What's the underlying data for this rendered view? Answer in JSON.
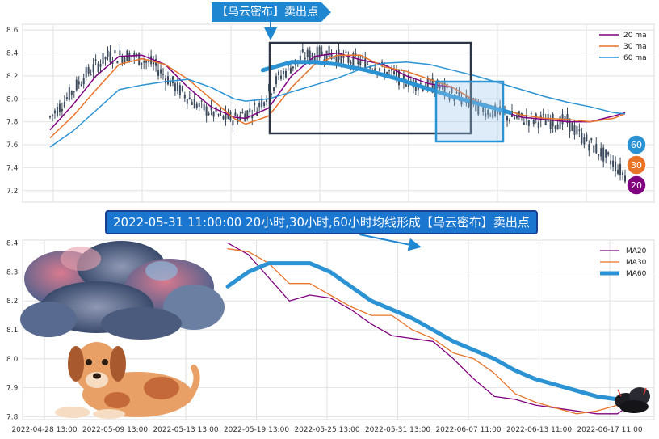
{
  "banners": {
    "top": "【乌云密布】卖出点",
    "middle": "2022-05-31 11:00:00 20小时,30小时,60小时均线形成【乌云密布】卖出点"
  },
  "colors": {
    "ma20": "#800080",
    "ma30": "#e8742a",
    "ma60": "#2b93d4",
    "candle": "#3a4a5c",
    "banner_bg": "#1f86d1"
  },
  "badges": {
    "ma60": "60",
    "ma30": "30",
    "ma20": "20"
  },
  "chart_data": [
    {
      "type": "line",
      "y_ticks": [
        "8.6",
        "8.4",
        "8.2",
        "8.0",
        "7.8",
        "7.6",
        "7.4",
        "7.2"
      ],
      "ylim": [
        7.1,
        8.65
      ],
      "grid": true,
      "legend_position": "top-right",
      "candle_x_range": [
        0,
        100
      ],
      "series": [
        {
          "name": "20 ma",
          "color": "#800080",
          "width": 1.5,
          "points": [
            [
              0,
              7.73
            ],
            [
              4,
              7.95
            ],
            [
              8,
              8.2
            ],
            [
              12,
              8.37
            ],
            [
              16,
              8.38
            ],
            [
              20,
              8.3
            ],
            [
              24,
              8.1
            ],
            [
              28,
              7.93
            ],
            [
              32,
              7.84
            ],
            [
              34,
              7.83
            ],
            [
              38,
              7.92
            ],
            [
              42,
              8.2
            ],
            [
              46,
              8.37
            ],
            [
              50,
              8.4
            ],
            [
              54,
              8.34
            ],
            [
              58,
              8.3
            ],
            [
              62,
              8.2
            ],
            [
              66,
              8.13
            ],
            [
              70,
              8.1
            ],
            [
              74,
              7.98
            ],
            [
              78,
              7.9
            ],
            [
              82,
              7.84
            ],
            [
              86,
              7.82
            ],
            [
              90,
              7.8
            ],
            [
              94,
              7.8
            ],
            [
              98,
              7.85
            ],
            [
              100,
              7.88
            ]
          ]
        },
        {
          "name": "30 ma",
          "color": "#e8742a",
          "width": 1.5,
          "points": [
            [
              0,
              7.66
            ],
            [
              4,
              7.85
            ],
            [
              8,
              8.08
            ],
            [
              12,
              8.3
            ],
            [
              16,
              8.35
            ],
            [
              20,
              8.3
            ],
            [
              24,
              8.17
            ],
            [
              28,
              8.0
            ],
            [
              32,
              7.83
            ],
            [
              34,
              7.78
            ],
            [
              38,
              7.85
            ],
            [
              42,
              8.1
            ],
            [
              46,
              8.3
            ],
            [
              50,
              8.38
            ],
            [
              54,
              8.38
            ],
            [
              58,
              8.28
            ],
            [
              62,
              8.24
            ],
            [
              66,
              8.17
            ],
            [
              70,
              8.1
            ],
            [
              74,
              7.98
            ],
            [
              78,
              7.92
            ],
            [
              82,
              7.86
            ],
            [
              86,
              7.83
            ],
            [
              90,
              7.82
            ],
            [
              94,
              7.8
            ],
            [
              98,
              7.83
            ],
            [
              100,
              7.87
            ]
          ]
        },
        {
          "name": "60 ma",
          "color": "#2b93d4",
          "width": 1.5,
          "points": [
            [
              0,
              7.58
            ],
            [
              4,
              7.72
            ],
            [
              8,
              7.9
            ],
            [
              12,
              8.08
            ],
            [
              16,
              8.12
            ],
            [
              20,
              8.15
            ],
            [
              24,
              8.17
            ],
            [
              28,
              8.1
            ],
            [
              32,
              8.0
            ],
            [
              34,
              7.98
            ],
            [
              38,
              8.0
            ],
            [
              42,
              8.06
            ],
            [
              46,
              8.12
            ],
            [
              50,
              8.18
            ],
            [
              54,
              8.26
            ],
            [
              58,
              8.31
            ],
            [
              62,
              8.32
            ],
            [
              66,
              8.3
            ],
            [
              70,
              8.25
            ],
            [
              74,
              8.2
            ],
            [
              78,
              8.14
            ],
            [
              82,
              8.08
            ],
            [
              86,
              8.02
            ],
            [
              90,
              7.97
            ],
            [
              94,
              7.93
            ],
            [
              98,
              7.88
            ],
            [
              100,
              7.87
            ]
          ]
        }
      ]
    },
    {
      "type": "line",
      "x_tick_labels": [
        "2022-04-28 13:00",
        "2022-05-09 13:00",
        "2022-05-13 13:00",
        "2022-05-19 13:00",
        "2022-05-25 13:00",
        "2022-05-31 13:00",
        "2022-06-07 11:00",
        "2022-06-13 11:00",
        "2022-06-17 11:00"
      ],
      "y_ticks": [
        "8.4",
        "8.3",
        "8.2",
        "8.1",
        "8.0",
        "7.9",
        "7.8"
      ],
      "ylim": [
        7.79,
        8.41
      ],
      "grid": true,
      "legend_position": "top-right",
      "series": [
        {
          "name": "MA20",
          "color": "#800080",
          "width": 1.3,
          "points": [
            [
              0,
              8.4
            ],
            [
              5,
              8.36
            ],
            [
              10,
              8.28
            ],
            [
              15,
              8.2
            ],
            [
              20,
              8.22
            ],
            [
              25,
              8.21
            ],
            [
              30,
              8.17
            ],
            [
              35,
              8.12
            ],
            [
              40,
              8.08
            ],
            [
              45,
              8.07
            ],
            [
              50,
              8.06
            ],
            [
              55,
              8.0
            ],
            [
              60,
              7.93
            ],
            [
              65,
              7.87
            ],
            [
              70,
              7.86
            ],
            [
              75,
              7.84
            ],
            [
              80,
              7.83
            ],
            [
              85,
              7.82
            ],
            [
              90,
              7.81
            ],
            [
              95,
              7.81
            ],
            [
              100,
              7.86
            ]
          ]
        },
        {
          "name": "MA30",
          "color": "#e8742a",
          "width": 1.3,
          "points": [
            [
              0,
              8.38
            ],
            [
              5,
              8.37
            ],
            [
              10,
              8.33
            ],
            [
              15,
              8.26
            ],
            [
              20,
              8.26
            ],
            [
              25,
              8.22
            ],
            [
              30,
              8.18
            ],
            [
              35,
              8.15
            ],
            [
              40,
              8.15
            ],
            [
              45,
              8.1
            ],
            [
              50,
              8.07
            ],
            [
              55,
              8.02
            ],
            [
              60,
              8.0
            ],
            [
              65,
              7.95
            ],
            [
              70,
              7.88
            ],
            [
              75,
              7.85
            ],
            [
              80,
              7.83
            ],
            [
              85,
              7.81
            ],
            [
              90,
              7.82
            ],
            [
              95,
              7.84
            ],
            [
              100,
              7.86
            ]
          ]
        },
        {
          "name": "MA60",
          "color": "#2b93d4",
          "width": 5,
          "points": [
            [
              0,
              8.25
            ],
            [
              5,
              8.3
            ],
            [
              10,
              8.33
            ],
            [
              15,
              8.33
            ],
            [
              20,
              8.33
            ],
            [
              25,
              8.3
            ],
            [
              30,
              8.25
            ],
            [
              35,
              8.2
            ],
            [
              40,
              8.17
            ],
            [
              45,
              8.14
            ],
            [
              50,
              8.1
            ],
            [
              55,
              8.06
            ],
            [
              60,
              8.03
            ],
            [
              65,
              8.0
            ],
            [
              70,
              7.96
            ],
            [
              75,
              7.93
            ],
            [
              80,
              7.91
            ],
            [
              85,
              7.89
            ],
            [
              90,
              7.87
            ],
            [
              95,
              7.86
            ],
            [
              100,
              7.86
            ]
          ]
        }
      ]
    }
  ]
}
